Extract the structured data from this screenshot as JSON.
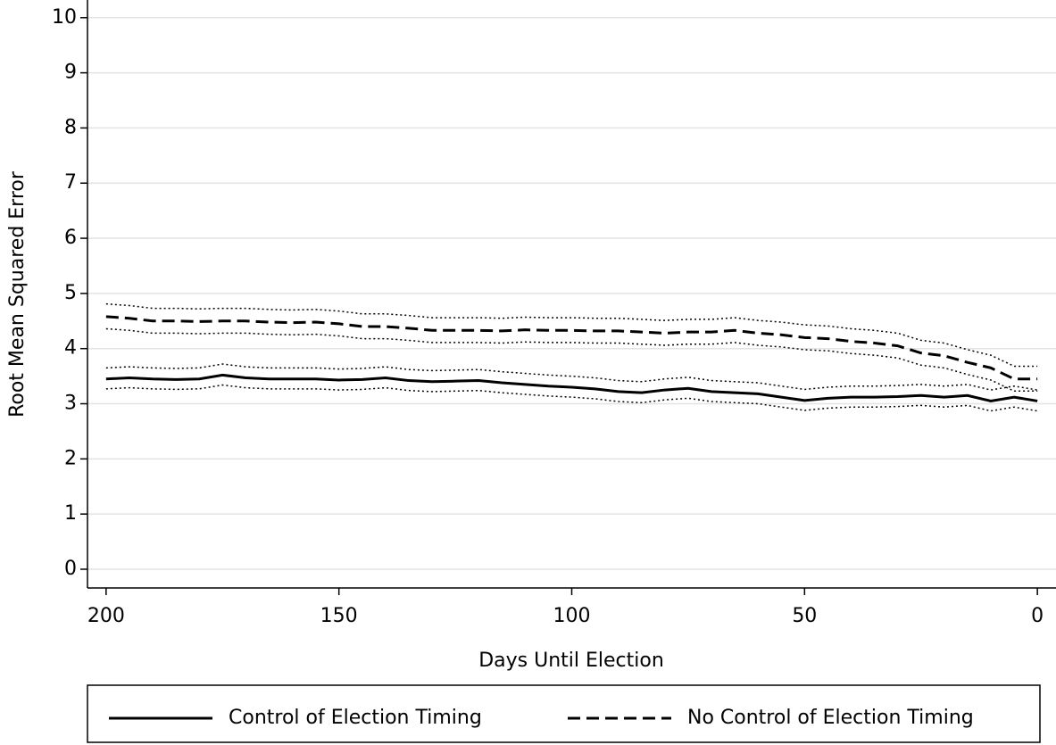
{
  "chart_data": {
    "type": "line",
    "x_label": "Days Until Election",
    "y_label": "Root Mean Squared Error",
    "x": [
      200,
      195,
      190,
      185,
      180,
      175,
      170,
      165,
      160,
      155,
      150,
      145,
      140,
      135,
      130,
      125,
      120,
      115,
      110,
      105,
      100,
      95,
      90,
      85,
      80,
      75,
      70,
      65,
      60,
      55,
      50,
      45,
      40,
      35,
      30,
      25,
      20,
      15,
      10,
      5,
      0
    ],
    "series": [
      {
        "name": "Control of Election Timing",
        "color": "#000000",
        "dash": "solid",
        "values": [
          3.45,
          3.47,
          3.45,
          3.44,
          3.45,
          3.52,
          3.47,
          3.45,
          3.45,
          3.45,
          3.43,
          3.44,
          3.47,
          3.42,
          3.4,
          3.41,
          3.42,
          3.38,
          3.35,
          3.32,
          3.3,
          3.27,
          3.22,
          3.2,
          3.25,
          3.28,
          3.22,
          3.2,
          3.18,
          3.12,
          3.06,
          3.1,
          3.12,
          3.12,
          3.13,
          3.15,
          3.12,
          3.15,
          3.05,
          3.12,
          3.05
        ],
        "upper": [
          3.65,
          3.67,
          3.65,
          3.64,
          3.65,
          3.72,
          3.67,
          3.65,
          3.65,
          3.65,
          3.63,
          3.64,
          3.67,
          3.62,
          3.6,
          3.61,
          3.62,
          3.58,
          3.55,
          3.52,
          3.5,
          3.47,
          3.42,
          3.4,
          3.45,
          3.48,
          3.42,
          3.4,
          3.38,
          3.32,
          3.26,
          3.3,
          3.32,
          3.32,
          3.33,
          3.35,
          3.32,
          3.35,
          3.25,
          3.32,
          3.25
        ],
        "lower": [
          3.27,
          3.29,
          3.27,
          3.26,
          3.27,
          3.34,
          3.29,
          3.27,
          3.27,
          3.27,
          3.25,
          3.26,
          3.29,
          3.24,
          3.22,
          3.23,
          3.24,
          3.2,
          3.17,
          3.14,
          3.12,
          3.09,
          3.04,
          3.02,
          3.07,
          3.1,
          3.04,
          3.02,
          3.0,
          2.94,
          2.88,
          2.92,
          2.94,
          2.94,
          2.95,
          2.97,
          2.94,
          2.97,
          2.87,
          2.94,
          2.87
        ]
      },
      {
        "name": "No Control of Election Timing",
        "color": "#000000",
        "dash": "dashed",
        "values": [
          4.58,
          4.55,
          4.5,
          4.5,
          4.49,
          4.5,
          4.5,
          4.48,
          4.47,
          4.48,
          4.45,
          4.4,
          4.4,
          4.37,
          4.33,
          4.33,
          4.33,
          4.32,
          4.34,
          4.33,
          4.33,
          4.32,
          4.32,
          4.3,
          4.28,
          4.3,
          4.3,
          4.33,
          4.28,
          4.25,
          4.2,
          4.18,
          4.13,
          4.1,
          4.05,
          3.92,
          3.87,
          3.75,
          3.65,
          3.45,
          3.45
        ],
        "upper": [
          4.81,
          4.78,
          4.73,
          4.73,
          4.72,
          4.73,
          4.73,
          4.71,
          4.7,
          4.71,
          4.68,
          4.63,
          4.63,
          4.6,
          4.56,
          4.56,
          4.56,
          4.55,
          4.57,
          4.56,
          4.56,
          4.55,
          4.55,
          4.53,
          4.51,
          4.53,
          4.53,
          4.56,
          4.51,
          4.48,
          4.43,
          4.41,
          4.36,
          4.33,
          4.28,
          4.15,
          4.1,
          3.98,
          3.88,
          3.68,
          3.68
        ],
        "lower": [
          4.36,
          4.33,
          4.28,
          4.28,
          4.27,
          4.28,
          4.28,
          4.26,
          4.25,
          4.26,
          4.23,
          4.18,
          4.18,
          4.15,
          4.11,
          4.11,
          4.11,
          4.1,
          4.12,
          4.11,
          4.11,
          4.1,
          4.1,
          4.08,
          4.06,
          4.08,
          4.08,
          4.11,
          4.06,
          4.03,
          3.98,
          3.96,
          3.91,
          3.88,
          3.83,
          3.7,
          3.65,
          3.53,
          3.43,
          3.23,
          3.23
        ]
      }
    ],
    "xlim": [
      204,
      -4
    ],
    "xticks": [
      200,
      150,
      100,
      50,
      0
    ],
    "ylim": [
      -0.34,
      10.32
    ],
    "yticks": [
      0,
      1,
      2,
      3,
      4,
      5,
      6,
      7,
      8,
      9,
      10
    ],
    "grid": true,
    "legend": "bottom"
  }
}
